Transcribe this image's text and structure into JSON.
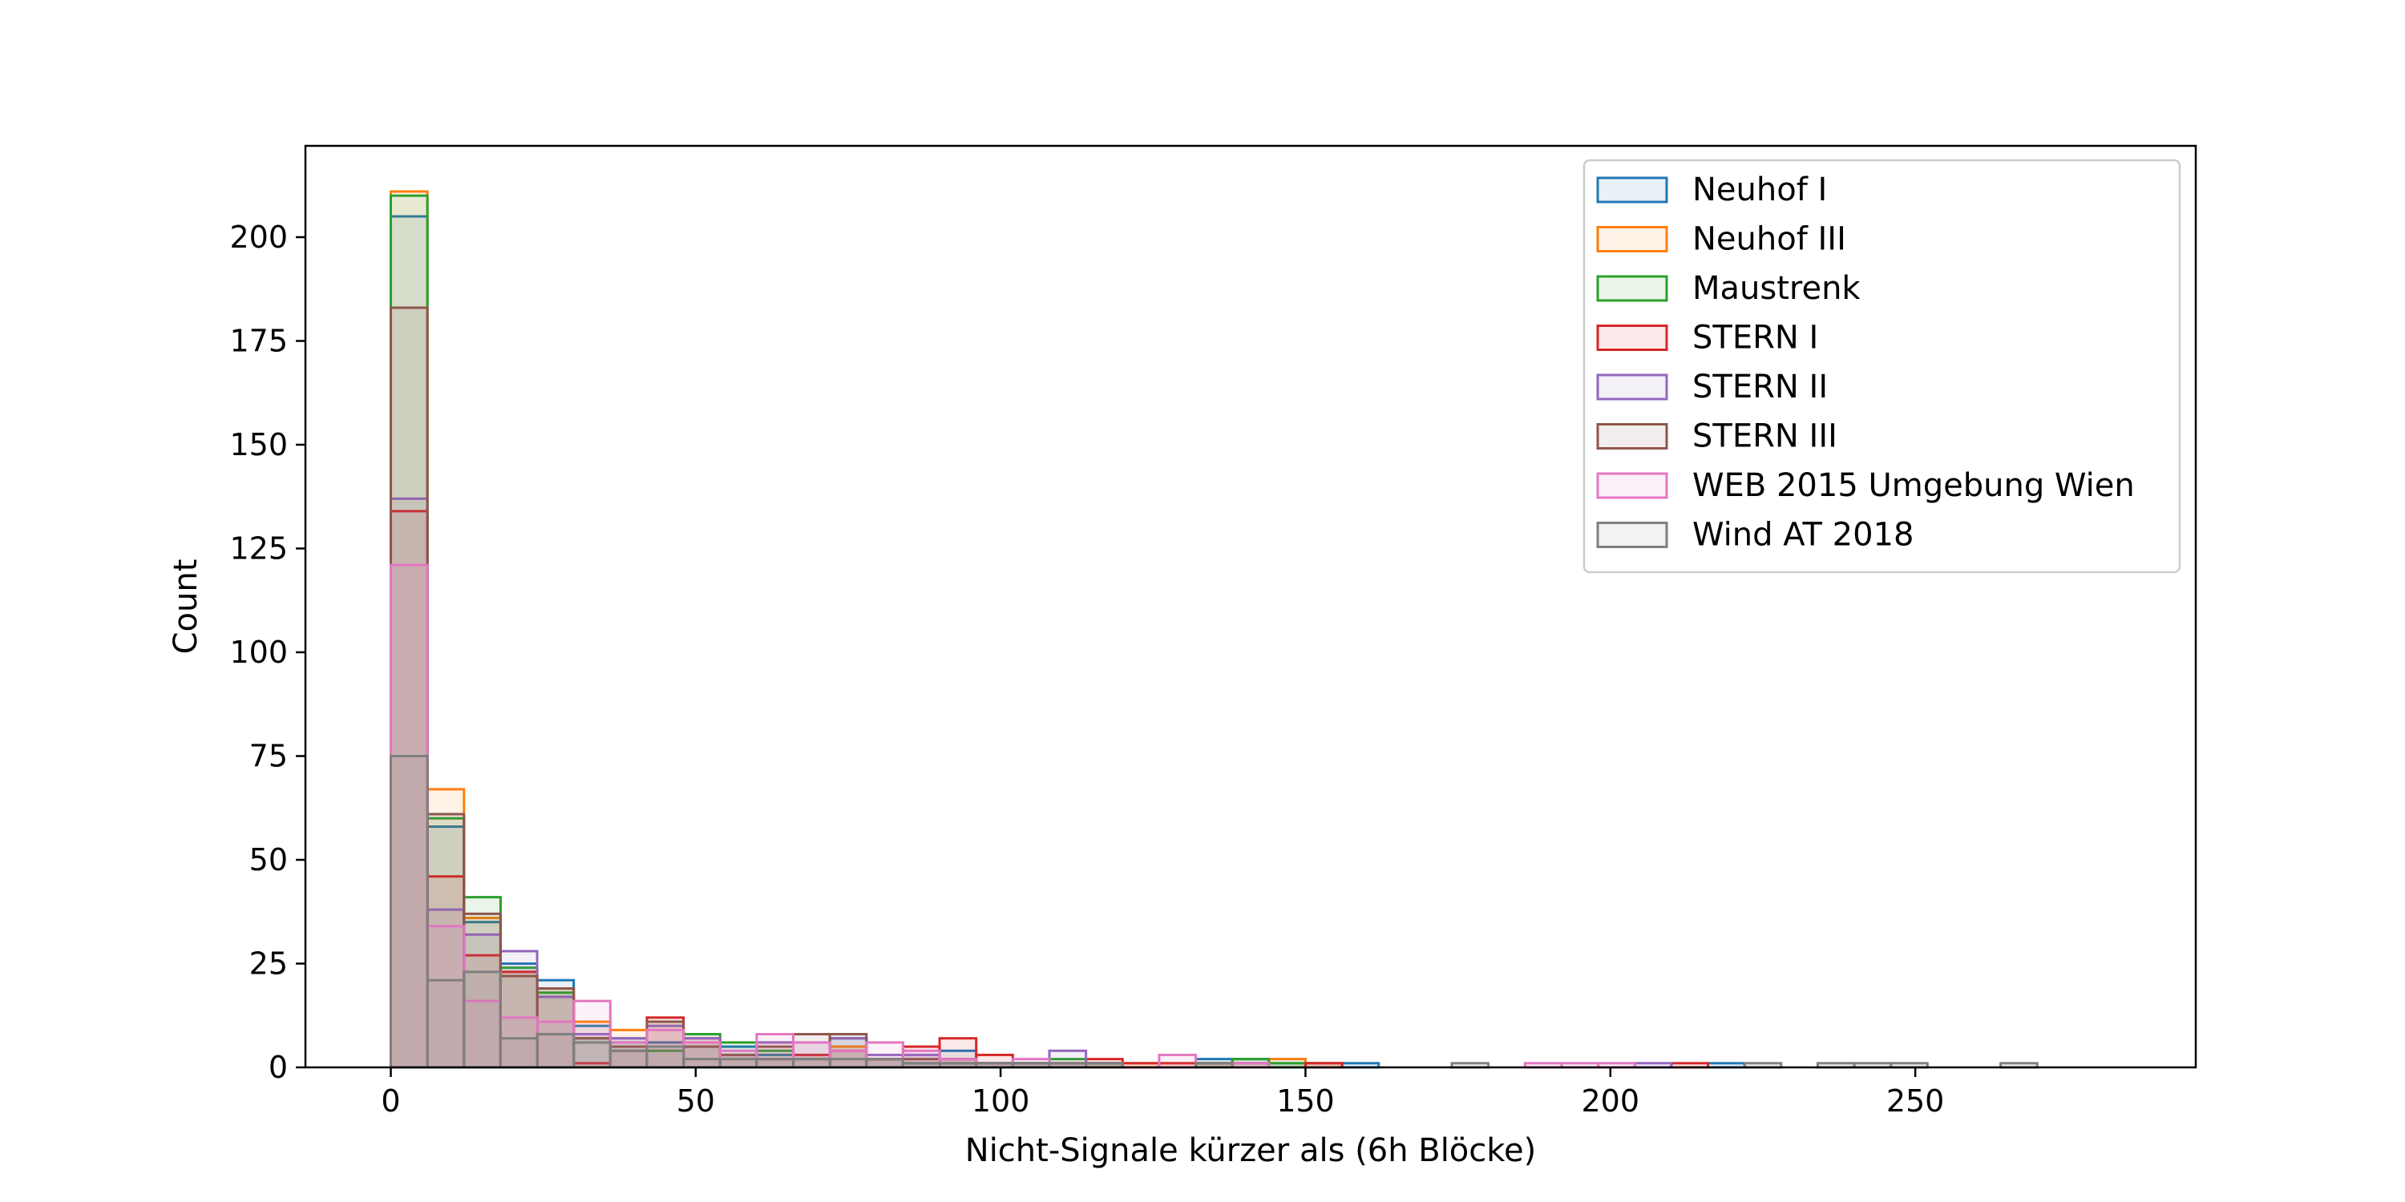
{
  "chart_data": {
    "type": "histogram",
    "title": "",
    "xlabel": "Nicht-Signale kürzer als (6h Blöcke)",
    "ylabel": "Count",
    "xlim": [
      -14,
      296
    ],
    "ylim": [
      0,
      222
    ],
    "x_ticks": [
      0,
      50,
      100,
      150,
      200,
      250
    ],
    "x_tick_labels": [
      "0",
      "50",
      "100",
      "150",
      "200",
      "250"
    ],
    "y_ticks": [
      0,
      25,
      50,
      75,
      100,
      125,
      150,
      175,
      200
    ],
    "y_tick_labels": [
      "0",
      "25",
      "50",
      "75",
      "100",
      "125",
      "150",
      "175",
      "200"
    ],
    "grid": false,
    "legend_position": "upper right",
    "bin_edges_approx": [
      0,
      6,
      12,
      18,
      24,
      30,
      36,
      42,
      48,
      54,
      60,
      66,
      72,
      78,
      84,
      90,
      96,
      102,
      108,
      114,
      120,
      126,
      132,
      138,
      144,
      150,
      156,
      162
    ],
    "series": [
      {
        "name": "Neuhof I",
        "color": "#1f77b4",
        "bins": [
          [
            0,
            6,
            205
          ],
          [
            6,
            12,
            58
          ],
          [
            12,
            18,
            35
          ],
          [
            18,
            24,
            25
          ],
          [
            24,
            30,
            21
          ],
          [
            30,
            36,
            10
          ],
          [
            36,
            42,
            7
          ],
          [
            42,
            48,
            6
          ],
          [
            48,
            54,
            5
          ],
          [
            54,
            60,
            5
          ],
          [
            60,
            66,
            3
          ],
          [
            66,
            72,
            2
          ],
          [
            72,
            78,
            7
          ],
          [
            78,
            84,
            2
          ],
          [
            84,
            90,
            3
          ],
          [
            90,
            96,
            4
          ],
          [
            96,
            102,
            1
          ],
          [
            102,
            108,
            1
          ],
          [
            108,
            114,
            1
          ],
          [
            114,
            120,
            1
          ],
          [
            132,
            138,
            2
          ],
          [
            138,
            144,
            2
          ],
          [
            144,
            150,
            1
          ],
          [
            150,
            156,
            1
          ],
          [
            156,
            162,
            1
          ],
          [
            216,
            222,
            1
          ]
        ]
      },
      {
        "name": "Neuhof III",
        "color": "#ff7f0e",
        "bins": [
          [
            0,
            6,
            211
          ],
          [
            6,
            12,
            67
          ],
          [
            12,
            18,
            36
          ],
          [
            18,
            24,
            23
          ],
          [
            24,
            30,
            19
          ],
          [
            30,
            36,
            11
          ],
          [
            36,
            42,
            9
          ],
          [
            42,
            48,
            11
          ],
          [
            48,
            54,
            6
          ],
          [
            54,
            60,
            3
          ],
          [
            60,
            66,
            6
          ],
          [
            66,
            72,
            3
          ],
          [
            72,
            78,
            5
          ],
          [
            78,
            84,
            2
          ],
          [
            84,
            90,
            2
          ],
          [
            90,
            96,
            2
          ],
          [
            96,
            102,
            1
          ],
          [
            102,
            108,
            1
          ],
          [
            108,
            114,
            1
          ],
          [
            114,
            120,
            1
          ],
          [
            120,
            126,
            1
          ],
          [
            126,
            132,
            1
          ],
          [
            132,
            138,
            1
          ],
          [
            138,
            144,
            1
          ],
          [
            144,
            150,
            2
          ],
          [
            150,
            156,
            1
          ]
        ]
      },
      {
        "name": "Maustrenk",
        "color": "#2ca02c",
        "bins": [
          [
            0,
            6,
            210
          ],
          [
            6,
            12,
            60
          ],
          [
            12,
            18,
            41
          ],
          [
            18,
            24,
            24
          ],
          [
            24,
            30,
            18
          ],
          [
            30,
            36,
            7
          ],
          [
            36,
            42,
            6
          ],
          [
            42,
            48,
            4
          ],
          [
            48,
            54,
            8
          ],
          [
            54,
            60,
            6
          ],
          [
            60,
            66,
            4
          ],
          [
            66,
            72,
            3
          ],
          [
            72,
            78,
            4
          ],
          [
            78,
            84,
            2
          ],
          [
            84,
            90,
            1
          ],
          [
            90,
            96,
            1
          ],
          [
            96,
            102,
            1
          ],
          [
            102,
            108,
            1
          ],
          [
            108,
            114,
            2
          ],
          [
            114,
            120,
            1
          ],
          [
            132,
            138,
            1
          ],
          [
            138,
            144,
            2
          ],
          [
            144,
            150,
            1
          ]
        ]
      },
      {
        "name": "STERN I",
        "color": "#d62728",
        "bins": [
          [
            0,
            6,
            134
          ],
          [
            6,
            12,
            46
          ],
          [
            12,
            18,
            27
          ],
          [
            18,
            24,
            23
          ],
          [
            24,
            30,
            17
          ],
          [
            30,
            36,
            1
          ],
          [
            36,
            42,
            4
          ],
          [
            42,
            48,
            12
          ],
          [
            48,
            54,
            7
          ],
          [
            54,
            60,
            3
          ],
          [
            60,
            66,
            2
          ],
          [
            66,
            72,
            3
          ],
          [
            72,
            78,
            4
          ],
          [
            78,
            84,
            2
          ],
          [
            84,
            90,
            5
          ],
          [
            90,
            96,
            7
          ],
          [
            96,
            102,
            3
          ],
          [
            102,
            108,
            1
          ],
          [
            108,
            114,
            1
          ],
          [
            114,
            120,
            2
          ],
          [
            120,
            126,
            1
          ],
          [
            126,
            132,
            1
          ],
          [
            132,
            138,
            1
          ],
          [
            150,
            156,
            1
          ],
          [
            210,
            216,
            1
          ]
        ]
      },
      {
        "name": "STERN II",
        "color": "#9467bd",
        "bins": [
          [
            0,
            6,
            137
          ],
          [
            6,
            12,
            38
          ],
          [
            12,
            18,
            32
          ],
          [
            18,
            24,
            28
          ],
          [
            24,
            30,
            17
          ],
          [
            30,
            36,
            8
          ],
          [
            36,
            42,
            7
          ],
          [
            42,
            48,
            10
          ],
          [
            48,
            54,
            7
          ],
          [
            54,
            60,
            3
          ],
          [
            60,
            66,
            6
          ],
          [
            66,
            72,
            6
          ],
          [
            72,
            78,
            7
          ],
          [
            78,
            84,
            3
          ],
          [
            84,
            90,
            3
          ],
          [
            90,
            96,
            2
          ],
          [
            96,
            102,
            1
          ],
          [
            102,
            108,
            1
          ],
          [
            108,
            114,
            4
          ],
          [
            114,
            120,
            1
          ],
          [
            204,
            210,
            1
          ]
        ]
      },
      {
        "name": "STERN III",
        "color": "#8c564b",
        "bins": [
          [
            0,
            6,
            183
          ],
          [
            6,
            12,
            61
          ],
          [
            12,
            18,
            37
          ],
          [
            18,
            24,
            22
          ],
          [
            24,
            30,
            19
          ],
          [
            30,
            36,
            7
          ],
          [
            36,
            42,
            5
          ],
          [
            42,
            48,
            11
          ],
          [
            48,
            54,
            5
          ],
          [
            54,
            60,
            3
          ],
          [
            60,
            66,
            5
          ],
          [
            66,
            72,
            8
          ],
          [
            72,
            78,
            8
          ],
          [
            78,
            84,
            2
          ],
          [
            84,
            90,
            2
          ],
          [
            90,
            96,
            2
          ],
          [
            96,
            102,
            1
          ],
          [
            102,
            108,
            1
          ],
          [
            108,
            114,
            1
          ],
          [
            114,
            120,
            1
          ],
          [
            132,
            138,
            1
          ],
          [
            138,
            144,
            1
          ]
        ]
      },
      {
        "name": "WEB 2015 Umgebung Wien",
        "color": "#e377c2",
        "bins": [
          [
            0,
            6,
            121
          ],
          [
            6,
            12,
            34
          ],
          [
            12,
            18,
            16
          ],
          [
            18,
            24,
            12
          ],
          [
            24,
            30,
            11
          ],
          [
            30,
            36,
            16
          ],
          [
            36,
            42,
            6
          ],
          [
            42,
            48,
            9
          ],
          [
            48,
            54,
            6
          ],
          [
            54,
            60,
            4
          ],
          [
            60,
            66,
            8
          ],
          [
            66,
            72,
            6
          ],
          [
            72,
            78,
            4
          ],
          [
            78,
            84,
            6
          ],
          [
            84,
            90,
            4
          ],
          [
            90,
            96,
            2
          ],
          [
            96,
            102,
            1
          ],
          [
            102,
            108,
            2
          ],
          [
            108,
            114,
            1
          ],
          [
            126,
            132,
            3
          ],
          [
            138,
            144,
            1
          ],
          [
            186,
            192,
            1
          ],
          [
            192,
            198,
            1
          ],
          [
            198,
            204,
            1
          ]
        ]
      },
      {
        "name": "Wind AT 2018",
        "color": "#7f7f7f",
        "bins": [
          [
            0,
            6,
            75
          ],
          [
            6,
            12,
            21
          ],
          [
            12,
            18,
            23
          ],
          [
            18,
            24,
            7
          ],
          [
            24,
            30,
            8
          ],
          [
            30,
            36,
            6
          ],
          [
            36,
            42,
            4
          ],
          [
            42,
            48,
            5
          ],
          [
            48,
            54,
            2
          ],
          [
            54,
            60,
            2
          ],
          [
            60,
            66,
            2
          ],
          [
            66,
            72,
            2
          ],
          [
            72,
            78,
            2
          ],
          [
            78,
            84,
            2
          ],
          [
            84,
            90,
            1
          ],
          [
            90,
            96,
            1
          ],
          [
            96,
            102,
            1
          ],
          [
            102,
            108,
            1
          ],
          [
            108,
            114,
            1
          ],
          [
            114,
            120,
            1
          ],
          [
            132,
            138,
            1
          ],
          [
            174,
            180,
            1
          ],
          [
            222,
            228,
            1
          ],
          [
            234,
            240,
            1
          ],
          [
            240,
            246,
            1
          ],
          [
            246,
            252,
            1
          ],
          [
            264,
            270,
            1
          ]
        ]
      }
    ]
  }
}
